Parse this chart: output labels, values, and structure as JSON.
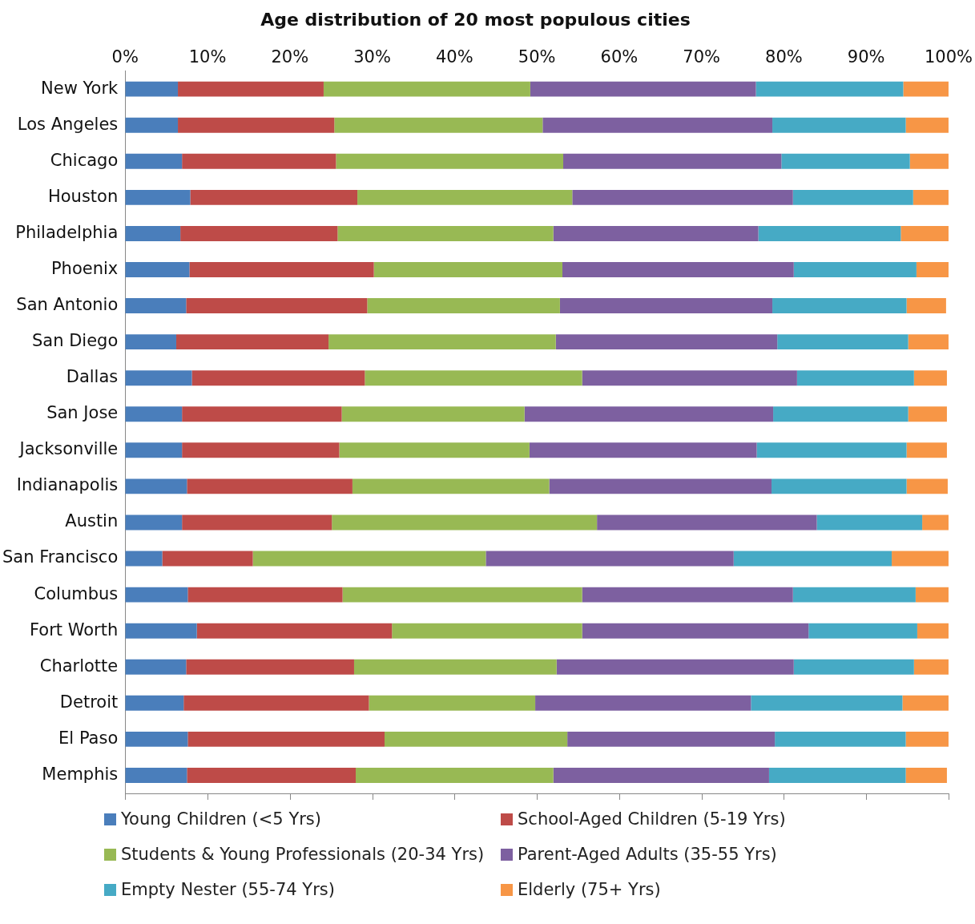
{
  "chart_data": {
    "type": "bar",
    "title": "Age distribution of 20 most populous cities",
    "orientation": "horizontal",
    "stacked": true,
    "legend": "bottom",
    "grid": false,
    "categories": [
      "New York",
      "Los Angeles",
      "Chicago",
      "Houston",
      "Philadelphia",
      "Phoenix",
      "San Antonio",
      "San Diego",
      "Dallas",
      "San Jose",
      "Jacksonville",
      "Indianapolis",
      "Austin",
      "San Francisco",
      "Columbus",
      "Fort Worth",
      "Charlotte",
      "Detroit",
      "El Paso",
      "Memphis"
    ],
    "xlim": [
      0,
      100
    ],
    "xticks": [
      {
        "value": 0,
        "label": "0%"
      },
      {
        "value": 10,
        "label": "10%"
      },
      {
        "value": 20,
        "label": "20%"
      },
      {
        "value": 30,
        "label": "30%"
      },
      {
        "value": 40,
        "label": "40%"
      },
      {
        "value": 50,
        "label": "50%"
      },
      {
        "value": 60,
        "label": "60%"
      },
      {
        "value": 70,
        "label": "70%"
      },
      {
        "value": 80,
        "label": "80%"
      },
      {
        "value": 90,
        "label": "90%"
      },
      {
        "value": 100,
        "label": "100%"
      }
    ],
    "series": [
      {
        "name": "Young Children (<5 Yrs)",
        "color": "#4a7ebb",
        "values": [
          6.4,
          6.4,
          6.9,
          7.9,
          6.7,
          7.8,
          7.4,
          6.2,
          8.1,
          6.9,
          6.9,
          7.5,
          6.9,
          4.5,
          7.6,
          8.7,
          7.4,
          7.1,
          7.6,
          7.5
        ]
      },
      {
        "name": "School-Aged Children (5-19 Yrs)",
        "color": "#be4b48",
        "values": [
          17.7,
          19.0,
          18.7,
          20.3,
          19.1,
          22.4,
          22.0,
          18.5,
          21.0,
          19.4,
          19.1,
          20.1,
          18.2,
          11.0,
          18.8,
          23.7,
          20.4,
          22.5,
          23.9,
          20.5
        ]
      },
      {
        "name": "Students & Young Professionals (20-34 Yrs)",
        "color": "#98b954",
        "values": [
          25.1,
          25.3,
          27.6,
          26.1,
          26.2,
          22.9,
          23.4,
          27.6,
          26.4,
          22.2,
          23.1,
          23.9,
          32.2,
          28.3,
          29.1,
          23.1,
          24.6,
          20.2,
          22.2,
          24.0
        ]
      },
      {
        "name": "Parent-Aged Adults (35-55 Yrs)",
        "color": "#7d60a0",
        "values": [
          27.4,
          27.9,
          26.5,
          26.8,
          24.9,
          28.1,
          25.8,
          26.9,
          26.1,
          30.2,
          27.6,
          27.0,
          26.7,
          30.1,
          25.6,
          27.5,
          28.8,
          26.2,
          25.2,
          26.2
        ]
      },
      {
        "name": "Empty Nester (55-74 Yrs)",
        "color": "#46aac5",
        "values": [
          17.9,
          16.2,
          15.6,
          14.6,
          17.3,
          14.9,
          16.3,
          15.9,
          14.2,
          16.4,
          18.2,
          16.4,
          12.8,
          19.2,
          14.9,
          13.2,
          14.6,
          18.4,
          15.9,
          16.6
        ]
      },
      {
        "name": "Elderly (75+ Yrs)",
        "color": "#f79646",
        "values": [
          5.5,
          5.2,
          4.7,
          4.3,
          5.8,
          3.9,
          4.8,
          4.9,
          4.0,
          4.7,
          4.9,
          5.0,
          3.2,
          6.9,
          4.0,
          3.8,
          4.2,
          5.6,
          5.2,
          5.0
        ]
      }
    ]
  }
}
